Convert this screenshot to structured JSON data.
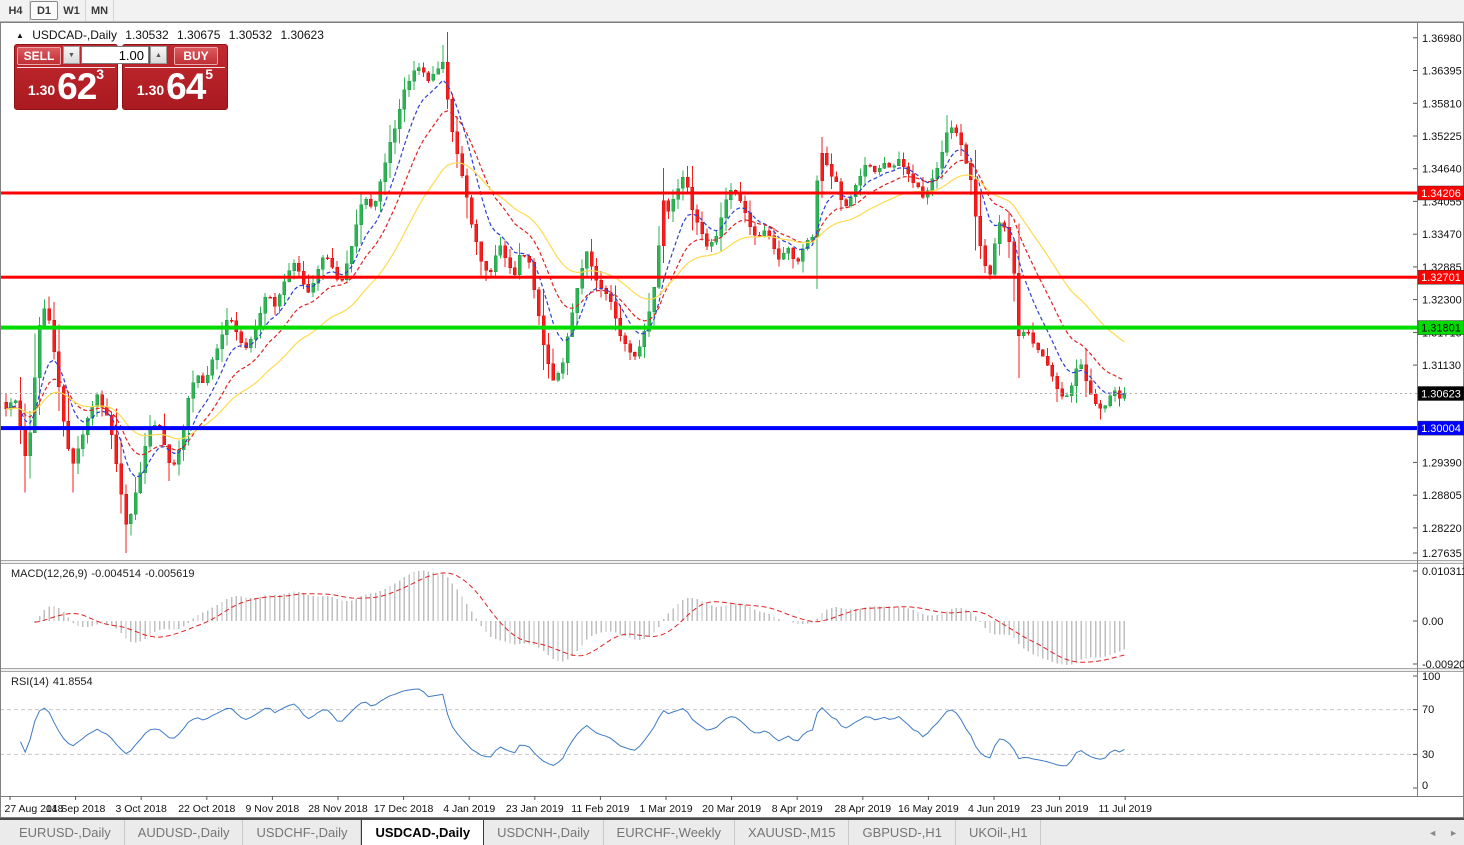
{
  "window": {
    "timeframes": [
      {
        "label": "H4",
        "active": false
      },
      {
        "label": "D1",
        "active": true
      },
      {
        "label": "W1",
        "active": false
      },
      {
        "label": "MN",
        "active": false
      }
    ]
  },
  "title": {
    "collapse_icon": "▲",
    "symbol": "USDCAD-,Daily",
    "open": "1.30532",
    "high": "1.30675",
    "low": "1.30532",
    "close": "1.30623"
  },
  "trade_panel": {
    "sell_label": "SELL",
    "buy_label": "BUY",
    "volume": "1.00",
    "spinner_down_glyph": "▼",
    "spinner_up_glyph": "▲",
    "sell_price": {
      "prefix": "1.30",
      "big": "62",
      "sup": "3"
    },
    "buy_price": {
      "prefix": "1.30",
      "big": "64",
      "sup": "5"
    }
  },
  "chart_data": {
    "type": "candlestick",
    "symbol": "USDCAD-",
    "timeframe": "Daily",
    "ohlc": {
      "open": 1.30532,
      "high": 1.30675,
      "low": 1.30532,
      "close": 1.30623
    },
    "price_axis_labels": [
      "1.36980",
      "1.36395",
      "1.35810",
      "1.35225",
      "1.34640",
      "1.34055",
      "1.33470",
      "1.32885",
      "1.32300",
      "1.31715",
      "1.31130",
      "1.29390",
      "1.28805",
      "1.28220",
      "1.27635"
    ],
    "hlines": [
      {
        "price": 1.34206,
        "label": "1.34206",
        "color": "#FF0000",
        "thickness": 3,
        "label_fg": "#FFFFFF"
      },
      {
        "price": 1.32701,
        "label": "1.32701",
        "color": "#FF0000",
        "thickness": 3,
        "label_fg": "#FFFFFF"
      },
      {
        "price": 1.31801,
        "label": "1.31801",
        "color": "#00DC00",
        "thickness": 4,
        "label_fg": "#000000"
      },
      {
        "price": 1.30004,
        "label": "1.30004",
        "color": "#0000FF",
        "thickness": 4,
        "label_fg": "#FFFFFF"
      }
    ],
    "current_price": {
      "value": 1.30623,
      "label": "1.30623",
      "badge_bg": "#000000",
      "badge_fg": "#FFFFFF",
      "line_color": "#ABABAB"
    },
    "date_labels": [
      "27 Aug 2018",
      "14 Sep 2018",
      "3 Oct 2018",
      "22 Oct 2018",
      "9 Nov 2018",
      "28 Nov 2018",
      "17 Dec 2018",
      "4 Jan 2019",
      "23 Jan 2019",
      "11 Feb 2019",
      "1 Mar 2019",
      "20 Mar 2019",
      "8 Apr 2019",
      "28 Apr 2019",
      "16 May 2019",
      "4 Jun 2019",
      "23 Jun 2019",
      "11 Jul 2019"
    ],
    "moving_averages": [
      {
        "period": 8,
        "color": "#2D3FD4",
        "style": "dashed"
      },
      {
        "period": 16,
        "color": "#E02222",
        "style": "dashed"
      },
      {
        "period": 32,
        "color": "#FFDB4D",
        "style": "solid"
      }
    ],
    "colors": {
      "up": "#2DB353",
      "up_border": "#1FA046",
      "down": "#F61D1D",
      "down_border": "#DD0E0E"
    },
    "price_waypoints": [
      [
        6,
        1.304
      ],
      [
        14,
        1.3058
      ],
      [
        20,
        1.3005
      ],
      [
        27,
        1.2932
      ],
      [
        33,
        1.3055
      ],
      [
        40,
        1.3195
      ],
      [
        46,
        1.322
      ],
      [
        52,
        1.3165
      ],
      [
        58,
        1.309
      ],
      [
        65,
        1.299
      ],
      [
        72,
        1.2935
      ],
      [
        80,
        1.2975
      ],
      [
        88,
        1.302
      ],
      [
        96,
        1.3058
      ],
      [
        104,
        1.3035
      ],
      [
        112,
        1.299
      ],
      [
        120,
        1.29
      ],
      [
        127,
        1.282
      ],
      [
        134,
        1.2868
      ],
      [
        142,
        1.294
      ],
      [
        150,
        1.2998
      ],
      [
        158,
        1.3008
      ],
      [
        165,
        1.2962
      ],
      [
        172,
        1.292
      ],
      [
        180,
        1.2965
      ],
      [
        188,
        1.3055
      ],
      [
        196,
        1.3098
      ],
      [
        204,
        1.3085
      ],
      [
        212,
        1.3118
      ],
      [
        220,
        1.3158
      ],
      [
        228,
        1.32
      ],
      [
        236,
        1.3172
      ],
      [
        244,
        1.314
      ],
      [
        252,
        1.3165
      ],
      [
        260,
        1.3208
      ],
      [
        268,
        1.3242
      ],
      [
        276,
        1.3218
      ],
      [
        284,
        1.3262
      ],
      [
        292,
        1.33
      ],
      [
        300,
        1.3272
      ],
      [
        308,
        1.3238
      ],
      [
        316,
        1.3268
      ],
      [
        324,
        1.3316
      ],
      [
        332,
        1.3288
      ],
      [
        340,
        1.3248
      ],
      [
        348,
        1.3298
      ],
      [
        356,
        1.3356
      ],
      [
        364,
        1.3415
      ],
      [
        372,
        1.339
      ],
      [
        380,
        1.3438
      ],
      [
        388,
        1.3498
      ],
      [
        396,
        1.3542
      ],
      [
        404,
        1.3598
      ],
      [
        412,
        1.3632
      ],
      [
        420,
        1.3648
      ],
      [
        428,
        1.3618
      ],
      [
        436,
        1.364
      ],
      [
        443,
        1.3658
      ],
      [
        450,
        1.356
      ],
      [
        458,
        1.3478
      ],
      [
        466,
        1.3418
      ],
      [
        474,
        1.335
      ],
      [
        482,
        1.3292
      ],
      [
        490,
        1.3268
      ],
      [
        498,
        1.333
      ],
      [
        506,
        1.33
      ],
      [
        514,
        1.3268
      ],
      [
        522,
        1.3322
      ],
      [
        530,
        1.3288
      ],
      [
        538,
        1.3208
      ],
      [
        546,
        1.313
      ],
      [
        554,
        1.3085
      ],
      [
        562,
        1.3105
      ],
      [
        570,
        1.3185
      ],
      [
        578,
        1.3252
      ],
      [
        586,
        1.3318
      ],
      [
        594,
        1.327
      ],
      [
        602,
        1.3252
      ],
      [
        610,
        1.3228
      ],
      [
        618,
        1.3178
      ],
      [
        626,
        1.3148
      ],
      [
        634,
        1.3125
      ],
      [
        642,
        1.316
      ],
      [
        650,
        1.3215
      ],
      [
        657,
        1.328
      ],
      [
        662,
        1.342
      ],
      [
        668,
        1.339
      ],
      [
        676,
        1.3428
      ],
      [
        684,
        1.3448
      ],
      [
        692,
        1.3398
      ],
      [
        700,
        1.3358
      ],
      [
        708,
        1.332
      ],
      [
        716,
        1.3342
      ],
      [
        724,
        1.3398
      ],
      [
        732,
        1.3428
      ],
      [
        740,
        1.3408
      ],
      [
        748,
        1.3368
      ],
      [
        756,
        1.334
      ],
      [
        764,
        1.3354
      ],
      [
        772,
        1.3334
      ],
      [
        780,
        1.33
      ],
      [
        788,
        1.332
      ],
      [
        796,
        1.329
      ],
      [
        804,
        1.3328
      ],
      [
        812,
        1.3336
      ],
      [
        820,
        1.3502
      ],
      [
        828,
        1.3462
      ],
      [
        836,
        1.3438
      ],
      [
        844,
        1.3392
      ],
      [
        852,
        1.342
      ],
      [
        860,
        1.3452
      ],
      [
        868,
        1.3474
      ],
      [
        876,
        1.345
      ],
      [
        884,
        1.3474
      ],
      [
        892,
        1.3464
      ],
      [
        900,
        1.3478
      ],
      [
        908,
        1.3454
      ],
      [
        916,
        1.3436
      ],
      [
        924,
        1.341
      ],
      [
        932,
        1.344
      ],
      [
        940,
        1.348
      ],
      [
        948,
        1.3542
      ],
      [
        956,
        1.3528
      ],
      [
        964,
        1.3488
      ],
      [
        972,
        1.344
      ],
      [
        978,
        1.3347
      ],
      [
        984,
        1.329
      ],
      [
        990,
        1.3272
      ],
      [
        996,
        1.334
      ],
      [
        1002,
        1.3378
      ],
      [
        1008,
        1.334
      ],
      [
        1014,
        1.328
      ],
      [
        1019,
        1.316
      ],
      [
        1026,
        1.318
      ],
      [
        1032,
        1.3152
      ],
      [
        1040,
        1.3135
      ],
      [
        1048,
        1.311
      ],
      [
        1056,
        1.3078
      ],
      [
        1064,
        1.3046
      ],
      [
        1072,
        1.3082
      ],
      [
        1080,
        1.3122
      ],
      [
        1088,
        1.3072
      ],
      [
        1096,
        1.3038
      ],
      [
        1102,
        1.3028
      ],
      [
        1108,
        1.3058
      ],
      [
        1114,
        1.3072
      ],
      [
        1120,
        1.3052
      ],
      [
        1126,
        1.30623
      ]
    ],
    "candle_overrides": [
      {
        "i": 4,
        "l": 1.2885
      },
      {
        "i": 8,
        "h": 1.323
      },
      {
        "i": 14,
        "l": 1.2885
      },
      {
        "i": 25,
        "l": 1.2777
      },
      {
        "i": 91,
        "h": 1.3685
      },
      {
        "i": 137,
        "h": 1.3465,
        "color": "down"
      },
      {
        "i": 170,
        "h": 1.3521,
        "color": "down"
      },
      {
        "i": 196,
        "h": 1.356
      },
      {
        "i": 228,
        "l": 1.3016
      },
      {
        "i": 233,
        "h": 1.307,
        "l": 1.305
      }
    ]
  },
  "macd": {
    "label": "MACD(12,26,9)",
    "value_main": "-0.004514",
    "value_signal": "-0.005619",
    "fast": 12,
    "slow": 26,
    "signal": 9,
    "axis_labels": [
      "0.010311",
      "0.00",
      "-0.009203"
    ],
    "hist_color": "#BFBFBF",
    "signal_color": "#E02222"
  },
  "rsi": {
    "label": "RSI(14)",
    "value": "41.8554",
    "period": 14,
    "axis_labels": [
      "100",
      "70",
      "30",
      "0"
    ],
    "levels": [
      70,
      30
    ],
    "line_color": "#3E7BC4",
    "level_color": "#C8C8C8"
  },
  "tabs": {
    "scroll_left_glyph": "◄",
    "scroll_right_glyph": "►",
    "items": [
      {
        "label": "EURUSD-,Daily",
        "active": false
      },
      {
        "label": "AUDUSD-,Daily",
        "active": false
      },
      {
        "label": "USDCHF-,Daily",
        "active": false
      },
      {
        "label": "USDCAD-,Daily",
        "active": true
      },
      {
        "label": "USDCNH-,Daily",
        "active": false
      },
      {
        "label": "EURCHF-,Weekly",
        "active": false
      },
      {
        "label": "XAUUSD-,M15",
        "active": false
      },
      {
        "label": "GBPUSD-,H1",
        "active": false
      },
      {
        "label": "UKOil-,H1",
        "active": false
      }
    ]
  }
}
